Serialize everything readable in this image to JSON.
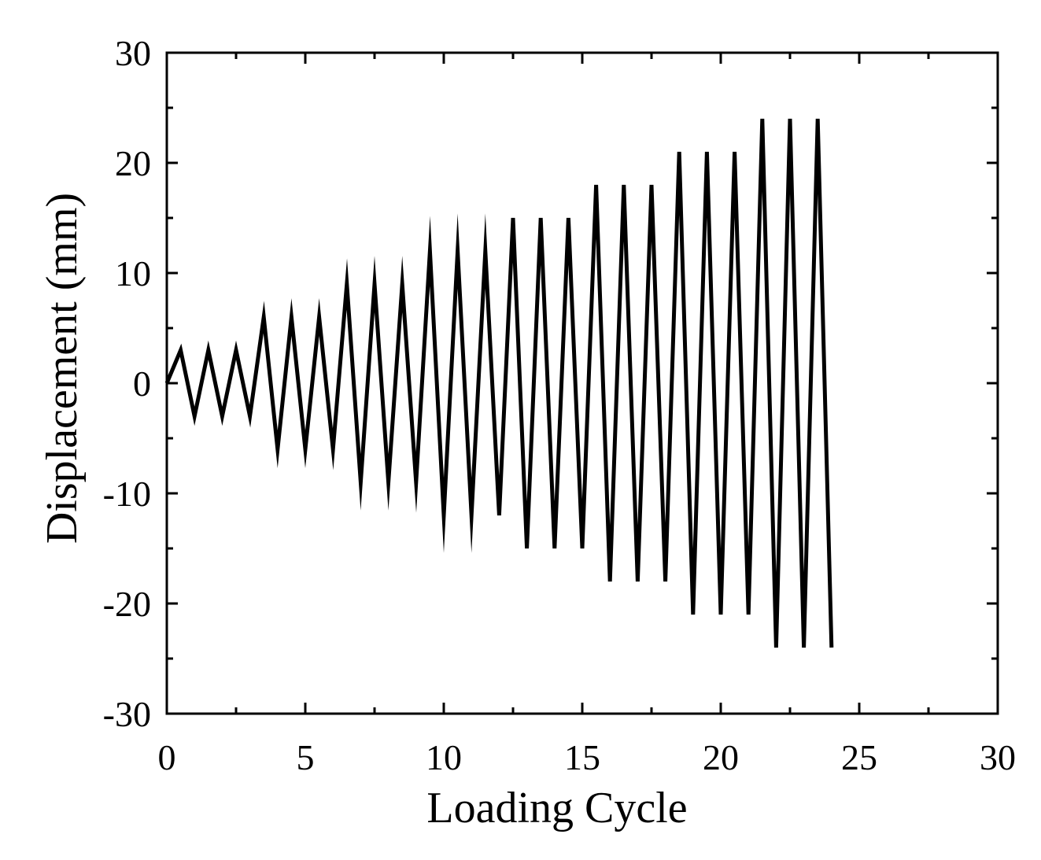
{
  "chart_data": {
    "type": "line",
    "title": "",
    "xlabel": "Loading Cycle",
    "ylabel": "Displacement  (mm)",
    "xlim": [
      0,
      30
    ],
    "ylim": [
      -30,
      30
    ],
    "xticks": [
      0,
      5,
      10,
      15,
      20,
      25,
      30
    ],
    "yticks": [
      -30,
      -20,
      -10,
      0,
      10,
      20,
      30
    ],
    "xtick_labels": [
      "0",
      "5",
      "10",
      "15",
      "20",
      "25",
      "30"
    ],
    "ytick_labels": [
      "-30",
      "-20",
      "-10",
      "0",
      "10",
      "20",
      "30"
    ],
    "grid": false,
    "line_color": "#000000",
    "series": [
      {
        "x": [
          0,
          0.5,
          1,
          1.5,
          2,
          2.5,
          3,
          3.5,
          4,
          4.5,
          5,
          5.5,
          6,
          6.5,
          7,
          7.5,
          8,
          8.5,
          9,
          9.5,
          10,
          10.5,
          11,
          11.5,
          12,
          12.5,
          13,
          13.5,
          14,
          14.5,
          15,
          15.5,
          16,
          16.5,
          17,
          17.5,
          18,
          18.5,
          19,
          19.5,
          20,
          20.5,
          21,
          21.5,
          22,
          22.5,
          23,
          23.5,
          24
        ],
        "y": [
          0,
          3,
          -3,
          3,
          -3,
          3,
          -3,
          6,
          -6,
          6,
          -6,
          6,
          -6,
          9,
          -9,
          9,
          -9,
          9,
          -9,
          12,
          -12,
          12,
          -12,
          12,
          -12,
          15,
          -15,
          15,
          -15,
          15,
          -15,
          18,
          -18,
          18,
          -18,
          18,
          -18,
          21,
          -21,
          21,
          -21,
          21,
          -21,
          24,
          -24,
          24,
          -24,
          24,
          -24
        ]
      }
    ]
  }
}
